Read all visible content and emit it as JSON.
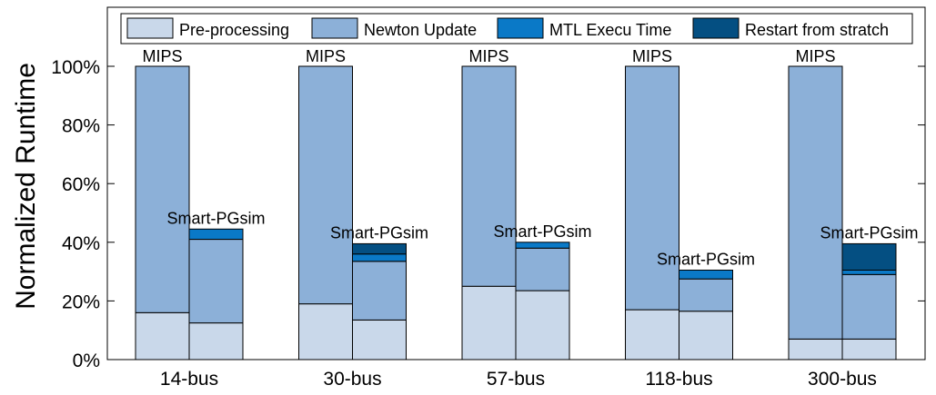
{
  "chart_data": {
    "type": "bar",
    "stacked": true,
    "grouped": true,
    "title": "",
    "xlabel": "",
    "ylabel": "Normalized Runtime",
    "ylim": [
      0,
      1.16
    ],
    "yticks": [
      0,
      0.2,
      0.4,
      0.6,
      0.8,
      1.0
    ],
    "ytick_labels": [
      "0%",
      "20%",
      "40%",
      "60%",
      "80%",
      "100%"
    ],
    "grid": false,
    "legend_position": "top",
    "categories": [
      "14-bus",
      "30-bus",
      "57-bus",
      "118-bus",
      "300-bus"
    ],
    "methods": [
      "MIPS",
      "Smart-PGsim"
    ],
    "series": [
      {
        "name": "Pre-processing",
        "color": "#c9d8ea"
      },
      {
        "name": "Newton Update",
        "color": "#8cb0d8"
      },
      {
        "name": "MTL Execu Time",
        "color": "#0a79c7"
      },
      {
        "name": "Restart from stratch",
        "color": "#044f82"
      }
    ],
    "values": {
      "MIPS": [
        [
          0.16,
          0.84,
          0,
          0
        ],
        [
          0.19,
          0.81,
          0,
          0
        ],
        [
          0.25,
          0.75,
          0,
          0
        ],
        [
          0.17,
          0.83,
          0,
          0
        ],
        [
          0.07,
          0.93,
          0,
          0
        ]
      ],
      "Smart-PGsim": [
        [
          0.125,
          0.285,
          0.035,
          0
        ],
        [
          0.135,
          0.2,
          0.025,
          0.035
        ],
        [
          0.235,
          0.145,
          0.02,
          0
        ],
        [
          0.165,
          0.11,
          0.03,
          0
        ],
        [
          0.07,
          0.22,
          0.015,
          0.09
        ]
      ]
    }
  }
}
